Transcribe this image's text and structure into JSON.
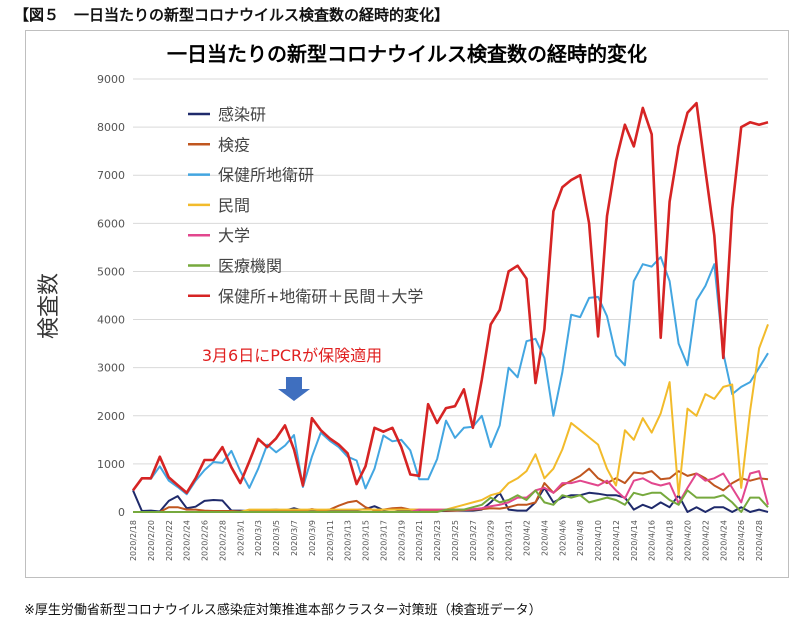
{
  "figure_caption": "【図５　一日当たりの新型コロナウイルス検査数の経時的変化】",
  "source_note": "※厚生労働省新型コロナウイルス感染症対策推進本部クラスター対策班（検査班データ）",
  "annotation": {
    "text": "3月6日にPCRが保険適用",
    "color": "#e02020",
    "arrow_color": "#3f6fbf",
    "at_date": "2020/3/7"
  },
  "chart_data": {
    "type": "line",
    "title": "一日当たりの新型コロナウイルス検査数の経時的変化",
    "ylabel": "検査数",
    "xlabel": "",
    "ylim": [
      0,
      9000
    ],
    "yticks": [
      0,
      1000,
      2000,
      3000,
      4000,
      5000,
      6000,
      7000,
      8000,
      9000
    ],
    "grid": "horizontal",
    "legend_position": "upper-left",
    "x_tick_labels": [
      "2020/2/18",
      "2020/2/20",
      "2020/2/22",
      "2020/2/24",
      "2020/2/26",
      "2020/2/28",
      "2020/3/1",
      "2020/3/3",
      "2020/3/5",
      "2020/3/7",
      "2020/3/9",
      "2020/3/11",
      "2020/3/13",
      "2020/3/15",
      "2020/3/17",
      "2020/3/19",
      "2020/3/21",
      "2020/3/23",
      "2020/3/25",
      "2020/3/27",
      "2020/3/29",
      "2020/3/31",
      "2020/4/2",
      "2020/4/4",
      "2020/4/6",
      "2020/4/8",
      "2020/4/10",
      "2020/4/12",
      "2020/4/14",
      "2020/4/16",
      "2020/4/18",
      "2020/4/20",
      "2020/4/22",
      "2020/4/24",
      "2020/4/26",
      "2020/4/28"
    ],
    "x": [
      "2020/2/18",
      "2020/2/19",
      "2020/2/20",
      "2020/2/21",
      "2020/2/22",
      "2020/2/23",
      "2020/2/24",
      "2020/2/25",
      "2020/2/26",
      "2020/2/27",
      "2020/2/28",
      "2020/2/29",
      "2020/3/1",
      "2020/3/2",
      "2020/3/3",
      "2020/3/4",
      "2020/3/5",
      "2020/3/6",
      "2020/3/7",
      "2020/3/8",
      "2020/3/9",
      "2020/3/10",
      "2020/3/11",
      "2020/3/12",
      "2020/3/13",
      "2020/3/14",
      "2020/3/15",
      "2020/3/16",
      "2020/3/17",
      "2020/3/18",
      "2020/3/19",
      "2020/3/20",
      "2020/3/21",
      "2020/3/22",
      "2020/3/23",
      "2020/3/24",
      "2020/3/25",
      "2020/3/26",
      "2020/3/27",
      "2020/3/28",
      "2020/3/29",
      "2020/3/30",
      "2020/3/31",
      "2020/4/1",
      "2020/4/2",
      "2020/4/3",
      "2020/4/4",
      "2020/4/5",
      "2020/4/6",
      "2020/4/7",
      "2020/4/8",
      "2020/4/9",
      "2020/4/10",
      "2020/4/11",
      "2020/4/12",
      "2020/4/13",
      "2020/4/14",
      "2020/4/15",
      "2020/4/16",
      "2020/4/17",
      "2020/4/18",
      "2020/4/19",
      "2020/4/20",
      "2020/4/21",
      "2020/4/22",
      "2020/4/23",
      "2020/4/24",
      "2020/4/25",
      "2020/4/26",
      "2020/4/27",
      "2020/4/28",
      "2020/4/29"
    ],
    "series": [
      {
        "name": "感染研",
        "color": "#1f2a6b",
        "values": [
          450,
          20,
          30,
          10,
          230,
          330,
          80,
          110,
          230,
          250,
          240,
          30,
          30,
          20,
          30,
          40,
          50,
          30,
          80,
          30,
          30,
          40,
          30,
          30,
          40,
          40,
          60,
          120,
          40,
          60,
          30,
          40,
          20,
          20,
          20,
          20,
          30,
          30,
          30,
          50,
          200,
          400,
          50,
          30,
          30,
          200,
          500,
          200,
          300,
          350,
          350,
          400,
          380,
          350,
          350,
          300,
          50,
          150,
          80,
          200,
          100,
          350,
          0,
          100,
          0,
          100,
          100,
          0,
          100,
          0,
          50,
          0
        ]
      },
      {
        "name": "検疫",
        "color": "#c0561f",
        "values": [
          0,
          0,
          0,
          0,
          100,
          100,
          50,
          50,
          30,
          20,
          20,
          20,
          10,
          30,
          20,
          20,
          30,
          40,
          30,
          20,
          60,
          30,
          50,
          130,
          200,
          230,
          100,
          30,
          50,
          80,
          90,
          50,
          50,
          20,
          30,
          30,
          30,
          40,
          50,
          60,
          80,
          70,
          100,
          150,
          150,
          200,
          600,
          400,
          550,
          650,
          750,
          900,
          700,
          600,
          700,
          600,
          820,
          800,
          850,
          680,
          700,
          850,
          750,
          800,
          700,
          550,
          450,
          600,
          700,
          650,
          700,
          680
        ]
      },
      {
        "name": "保健所地衛研",
        "color": "#43a6e1",
        "values": [
          450,
          700,
          690,
          950,
          650,
          520,
          370,
          650,
          870,
          1040,
          1020,
          1270,
          850,
          500,
          900,
          1400,
          1240,
          1380,
          1600,
          520,
          1150,
          1650,
          1480,
          1350,
          1150,
          1070,
          490,
          900,
          1590,
          1470,
          1500,
          1280,
          680,
          680,
          1100,
          1900,
          1540,
          1750,
          1770,
          2000,
          1350,
          1800,
          3000,
          2800,
          3550,
          3600,
          3200,
          2000,
          2900,
          4100,
          4050,
          4450,
          4470,
          4070,
          3250,
          3050,
          4800,
          5150,
          5100,
          5300,
          4800,
          3500,
          3050,
          4400,
          4700,
          5150,
          3300,
          2450,
          2600,
          2700,
          3000,
          3300
        ]
      },
      {
        "name": "民間",
        "color": "#f2bb2b",
        "values": [
          0,
          0,
          0,
          0,
          0,
          0,
          0,
          0,
          0,
          0,
          0,
          0,
          0,
          50,
          50,
          50,
          50,
          50,
          50,
          50,
          50,
          50,
          50,
          50,
          50,
          50,
          50,
          50,
          50,
          50,
          50,
          50,
          50,
          50,
          50,
          50,
          100,
          150,
          200,
          250,
          350,
          400,
          600,
          700,
          850,
          1200,
          700,
          900,
          1300,
          1850,
          1700,
          1550,
          1400,
          900,
          550,
          1700,
          1500,
          1950,
          1650,
          2050,
          2700,
          350,
          2150,
          2000,
          2450,
          2350,
          2600,
          2650,
          500,
          2100,
          3400,
          3900
        ]
      },
      {
        "name": "大学",
        "color": "#e2478e",
        "values": [
          0,
          0,
          0,
          0,
          0,
          0,
          0,
          0,
          0,
          0,
          0,
          0,
          0,
          0,
          0,
          0,
          0,
          0,
          0,
          0,
          0,
          0,
          0,
          0,
          0,
          0,
          0,
          0,
          0,
          0,
          0,
          0,
          50,
          50,
          50,
          50,
          50,
          50,
          60,
          80,
          120,
          150,
          200,
          300,
          300,
          450,
          500,
          400,
          600,
          600,
          650,
          600,
          550,
          650,
          450,
          280,
          650,
          700,
          600,
          550,
          600,
          180,
          500,
          800,
          650,
          700,
          800,
          500,
          200,
          800,
          850,
          150
        ]
      },
      {
        "name": "医療機関",
        "color": "#76a93d",
        "values": [
          0,
          0,
          0,
          0,
          0,
          0,
          0,
          0,
          0,
          0,
          0,
          0,
          0,
          0,
          0,
          0,
          0,
          0,
          0,
          0,
          0,
          0,
          0,
          0,
          0,
          0,
          0,
          0,
          0,
          0,
          0,
          0,
          0,
          0,
          0,
          50,
          50,
          50,
          100,
          150,
          300,
          200,
          250,
          350,
          250,
          450,
          200,
          150,
          350,
          300,
          350,
          200,
          250,
          300,
          250,
          150,
          400,
          350,
          400,
          400,
          250,
          150,
          450,
          300,
          300,
          300,
          350,
          200,
          0,
          300,
          300,
          100
        ]
      },
      {
        "name": "保健所+地衛研＋民間＋大学",
        "color": "#d62424",
        "values": [
          450,
          700,
          700,
          1150,
          720,
          560,
          400,
          700,
          1080,
          1080,
          1350,
          930,
          600,
          1050,
          1520,
          1350,
          1530,
          1800,
          1300,
          550,
          1950,
          1700,
          1530,
          1400,
          1220,
          580,
          950,
          1750,
          1670,
          1750,
          1350,
          780,
          750,
          2240,
          1850,
          2160,
          2200,
          2550,
          1750,
          2750,
          3900,
          4200,
          5000,
          5120,
          4850,
          2680,
          3800,
          6250,
          6750,
          6900,
          7000,
          6000,
          3650,
          6150,
          7300,
          8050,
          7600,
          8400,
          7850,
          3620,
          6450,
          7600,
          8300,
          8500,
          7100,
          5750,
          3200,
          6300,
          8000,
          8100,
          8050,
          8100
        ]
      }
    ]
  }
}
